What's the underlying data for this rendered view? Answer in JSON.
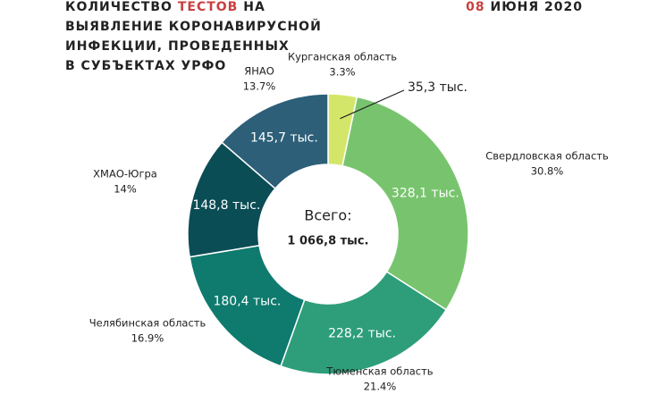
{
  "chart_data": {
    "type": "pie",
    "title_lead": "КОЛИЧЕСТВО",
    "title_highlight": "ТЕСТОВ",
    "title_rest": "НА",
    "title_lines": [
      "ВЫЯВЛЕНИЕ КОРОНАВИРУСНОЙ",
      "ИНФЕКЦИИ, ПРОВЕДЕННЫХ",
      "В СУБЪЕКТАХ УРФО"
    ],
    "date_day": "08",
    "date_rest": "ИЮНЯ 2020",
    "center_label": "Всего:",
    "total_label": "1 066,8 тыс.",
    "categories": [
      "Курганская область",
      "Свердловская область",
      "Тюменская область",
      "Челябинская область",
      "ХМАО-Югра",
      "ЯНАО"
    ],
    "values": [
      35.3,
      328.1,
      228.2,
      180.4,
      148.8,
      145.7
    ],
    "value_labels": [
      "35,3 тыс.",
      "328,1 тыс.",
      "228,2 тыс.",
      "180,4 тыс.",
      "148,8 тыс.",
      "145,7 тыс."
    ],
    "percent_labels": [
      "3.3%",
      "30.8%",
      "21.4%",
      "16.9%",
      "14%",
      "13.7%"
    ],
    "colors": [
      "#d4e66a",
      "#78c46e",
      "#2e9e7a",
      "#0f7a6e",
      "#0b4d55",
      "#2d5f78"
    ]
  }
}
